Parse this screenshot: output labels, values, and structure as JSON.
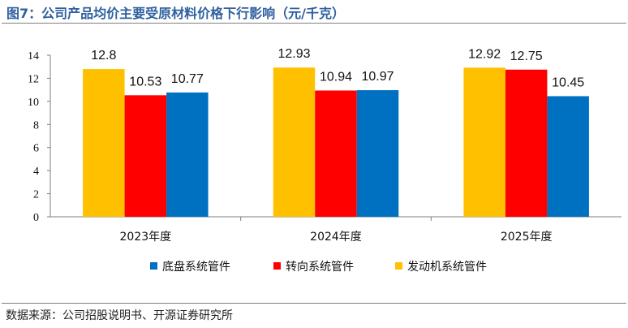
{
  "title": "图7：公司产品均价主要受原材料价格下行影响（元/千克）",
  "source": "数据来源：公司招股说明书、开源证券研究所",
  "chart_data": {
    "type": "bar",
    "categories": [
      "2023年度",
      "2024年度",
      "2025年度"
    ],
    "series": [
      {
        "name": "发动机系统管件",
        "color": "#FFC000",
        "values": [
          12.8,
          12.93,
          12.92
        ],
        "labels": [
          "12.8",
          "12.93",
          "12.92"
        ]
      },
      {
        "name": "转向系统管件",
        "color": "#FF0000",
        "values": [
          10.53,
          10.94,
          12.75
        ],
        "labels": [
          "10.53",
          "10.94",
          "12.75"
        ]
      },
      {
        "name": "底盘系统管件",
        "color": "#0070C0",
        "values": [
          10.77,
          10.97,
          10.45
        ],
        "labels": [
          "10.77",
          "10.97",
          "10.45"
        ]
      }
    ],
    "legend_order": [
      "底盘系统管件",
      "转向系统管件",
      "发动机系统管件"
    ],
    "y_ticks": [
      "0",
      "2",
      "4",
      "6",
      "8",
      "10",
      "12",
      "14"
    ],
    "ylim": [
      0,
      14
    ],
    "grid": false,
    "legend_position": "bottom"
  }
}
